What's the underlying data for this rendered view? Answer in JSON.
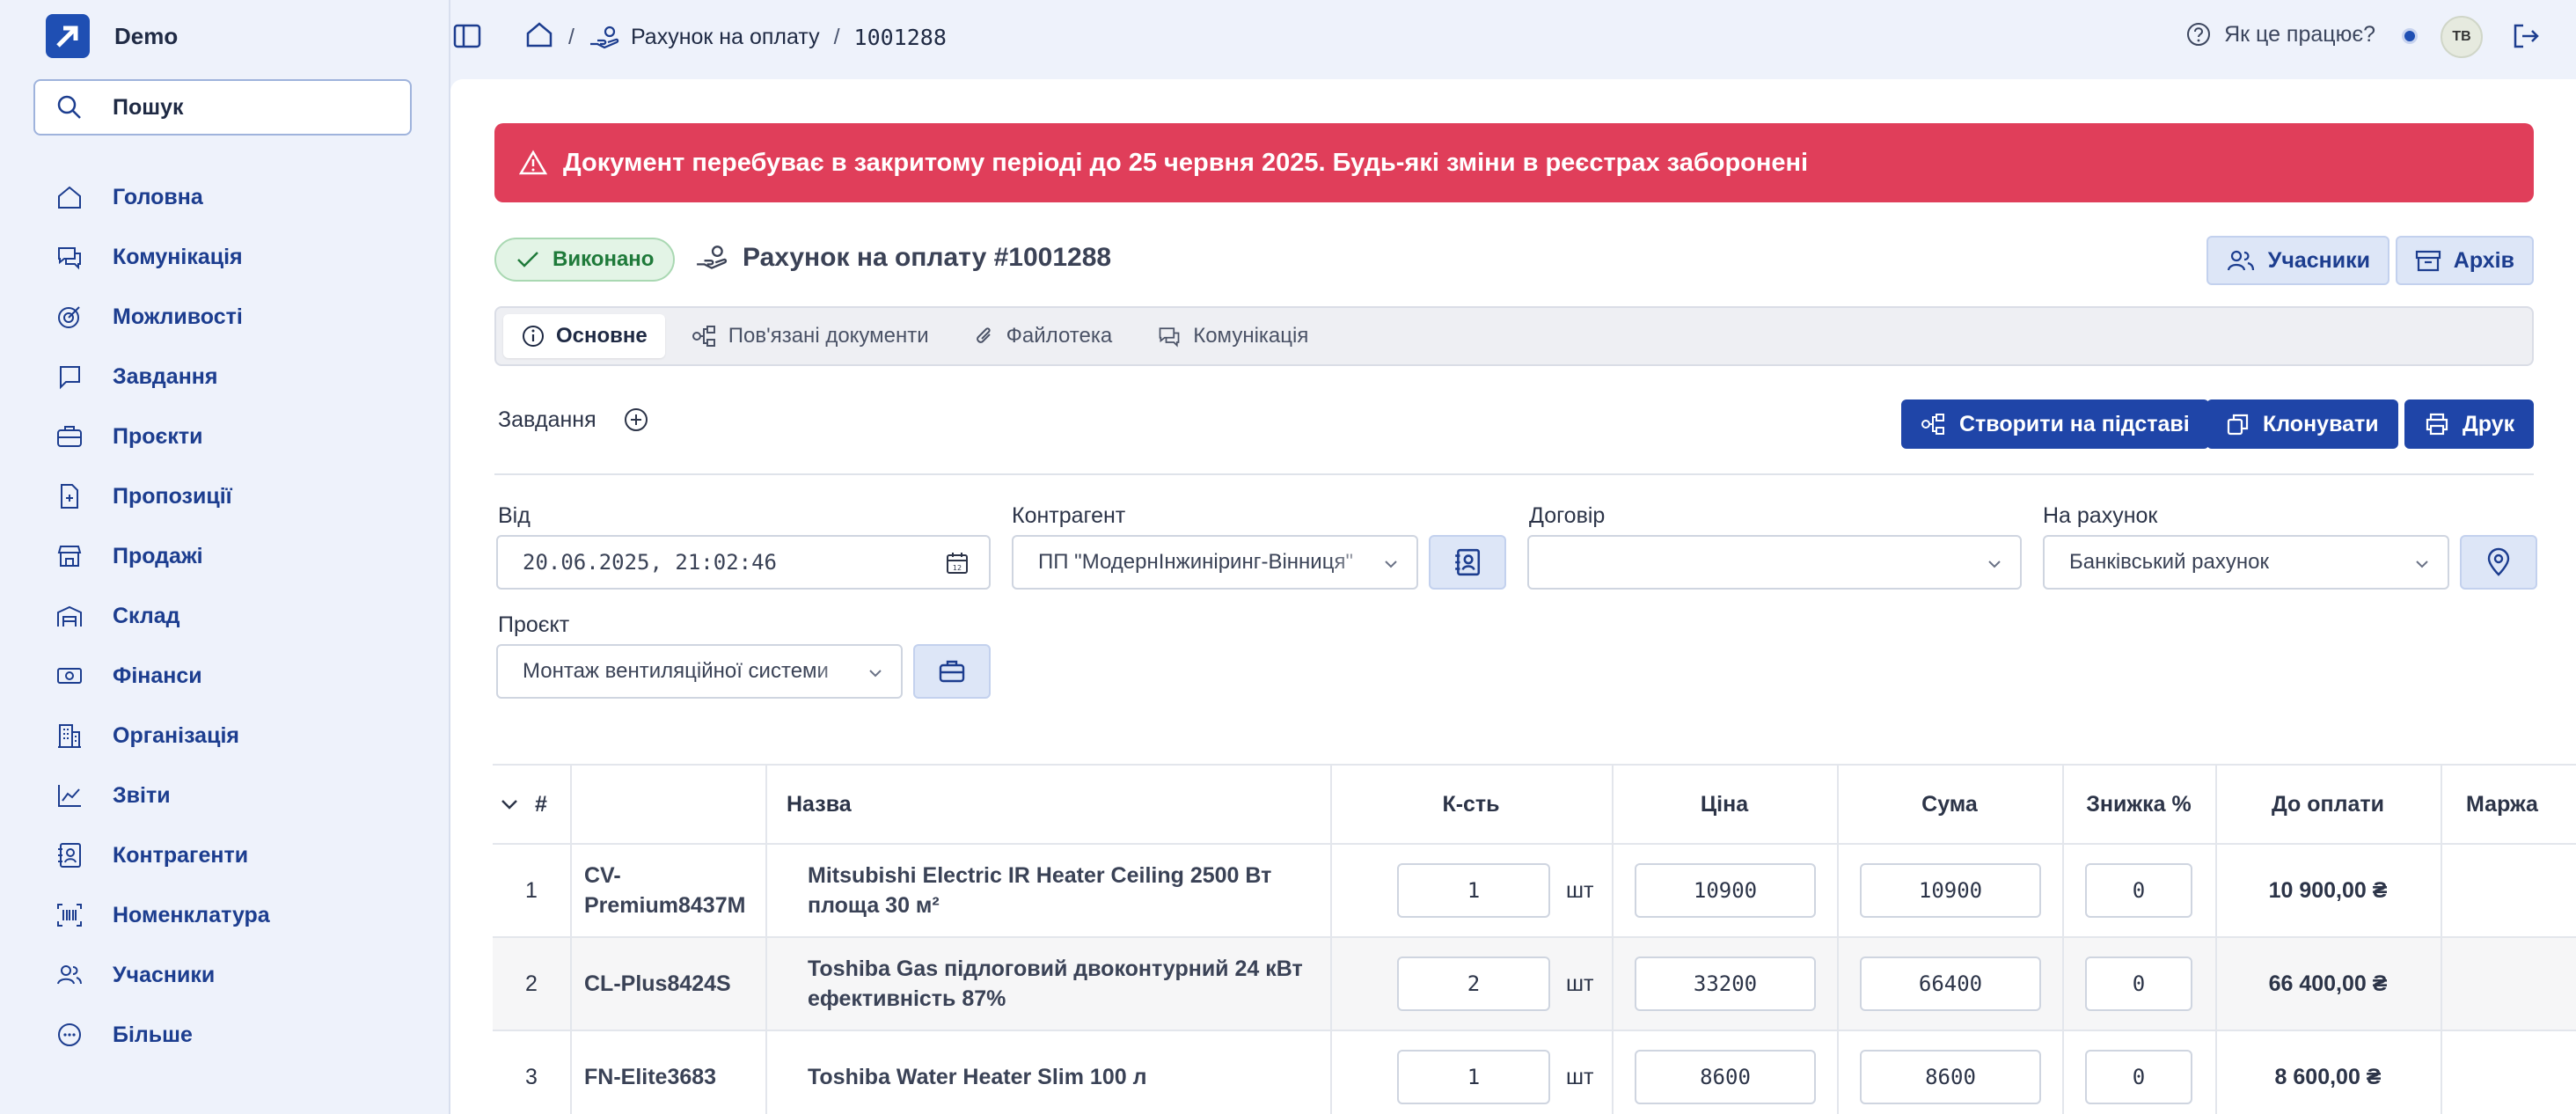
{
  "app": {
    "name": "Demo"
  },
  "search": {
    "label": "Пошук"
  },
  "sidebar": {
    "items": [
      {
        "label": "Головна",
        "icon": "home-icon"
      },
      {
        "label": "Комунікація",
        "icon": "chat-icon"
      },
      {
        "label": "Можливості",
        "icon": "target-icon"
      },
      {
        "label": "Завдання",
        "icon": "task-icon"
      },
      {
        "label": "Проєкти",
        "icon": "briefcase-icon"
      },
      {
        "label": "Пропозиції",
        "icon": "document-plus-icon"
      },
      {
        "label": "Продажі",
        "icon": "store-icon"
      },
      {
        "label": "Склад",
        "icon": "warehouse-icon"
      },
      {
        "label": "Фінанси",
        "icon": "banknote-icon"
      },
      {
        "label": "Організація",
        "icon": "building-icon"
      },
      {
        "label": "Звіти",
        "icon": "chart-icon"
      },
      {
        "label": "Контрагенти",
        "icon": "contact-icon"
      },
      {
        "label": "Номенклатура",
        "icon": "barcode-icon"
      },
      {
        "label": "Учасники",
        "icon": "users-icon"
      },
      {
        "label": "Більше",
        "icon": "more-icon"
      }
    ]
  },
  "breadcrumb": {
    "sep": "/",
    "doc_type": "Рахунок на оплату",
    "doc_id": "1001288"
  },
  "header": {
    "help": "Як це працює?",
    "avatar": "ТВ"
  },
  "alert": {
    "text": "Документ перебуває в закритому періоді до 25 червня 2025. Будь-які зміни в реєстрах заборонені"
  },
  "doc": {
    "status": "Виконано",
    "title": "Рахунок на оплату #1001288",
    "participants_button": "Учасники",
    "archive_button": "Архів"
  },
  "tabs": [
    {
      "label": "Основне",
      "icon": "info-icon"
    },
    {
      "label": "Пов'язані документи",
      "icon": "relations-icon"
    },
    {
      "label": "Файлотека",
      "icon": "paperclip-icon"
    },
    {
      "label": "Комунікація",
      "icon": "chat-icon"
    }
  ],
  "tasks": {
    "label": "Завдання"
  },
  "actions": {
    "create_based": "Створити на підставі",
    "clone": "Клонувати",
    "print": "Друк"
  },
  "form": {
    "from_label": "Від",
    "from_value": "20.06.2025, 21:02:46",
    "counterparty_label": "Контрагент",
    "counterparty_value": "ПП \"МодернІнжиніринг-Вінниця\"",
    "contract_label": "Договір",
    "contract_value": "",
    "account_label": "На рахунок",
    "account_value": "Банківський рахунок",
    "project_label": "Проєкт",
    "project_value": "Монтаж вентиляційної системи"
  },
  "table": {
    "headers": {
      "num": "#",
      "name": "Назва",
      "qty": "К-сть",
      "price": "Ціна",
      "sum": "Сума",
      "discount": "Знижка %",
      "to_pay": "До оплати",
      "margin": "Маржа"
    },
    "rows": [
      {
        "n": "1",
        "code": "CV-Premium8437M",
        "name": "Mitsubishi Electric IR Heater Ceiling 2500 Вт площа 30 м²",
        "qty": "1",
        "unit": "шт",
        "price": "10900",
        "sum": "10900",
        "discount": "0",
        "to_pay": "10 900,00 ₴"
      },
      {
        "n": "2",
        "code": "CL-Plus8424S",
        "name": "Toshiba Gas підлоговий двоконтурний 24 кВт ефективність 87%",
        "qty": "2",
        "unit": "шт",
        "price": "33200",
        "sum": "66400",
        "discount": "0",
        "to_pay": "66 400,00 ₴"
      },
      {
        "n": "3",
        "code": "FN-Elite3683",
        "name": "Toshiba Water Heater Slim 100 л",
        "qty": "1",
        "unit": "шт",
        "price": "8600",
        "sum": "8600",
        "discount": "0",
        "to_pay": "8 600,00 ₴"
      }
    ]
  }
}
